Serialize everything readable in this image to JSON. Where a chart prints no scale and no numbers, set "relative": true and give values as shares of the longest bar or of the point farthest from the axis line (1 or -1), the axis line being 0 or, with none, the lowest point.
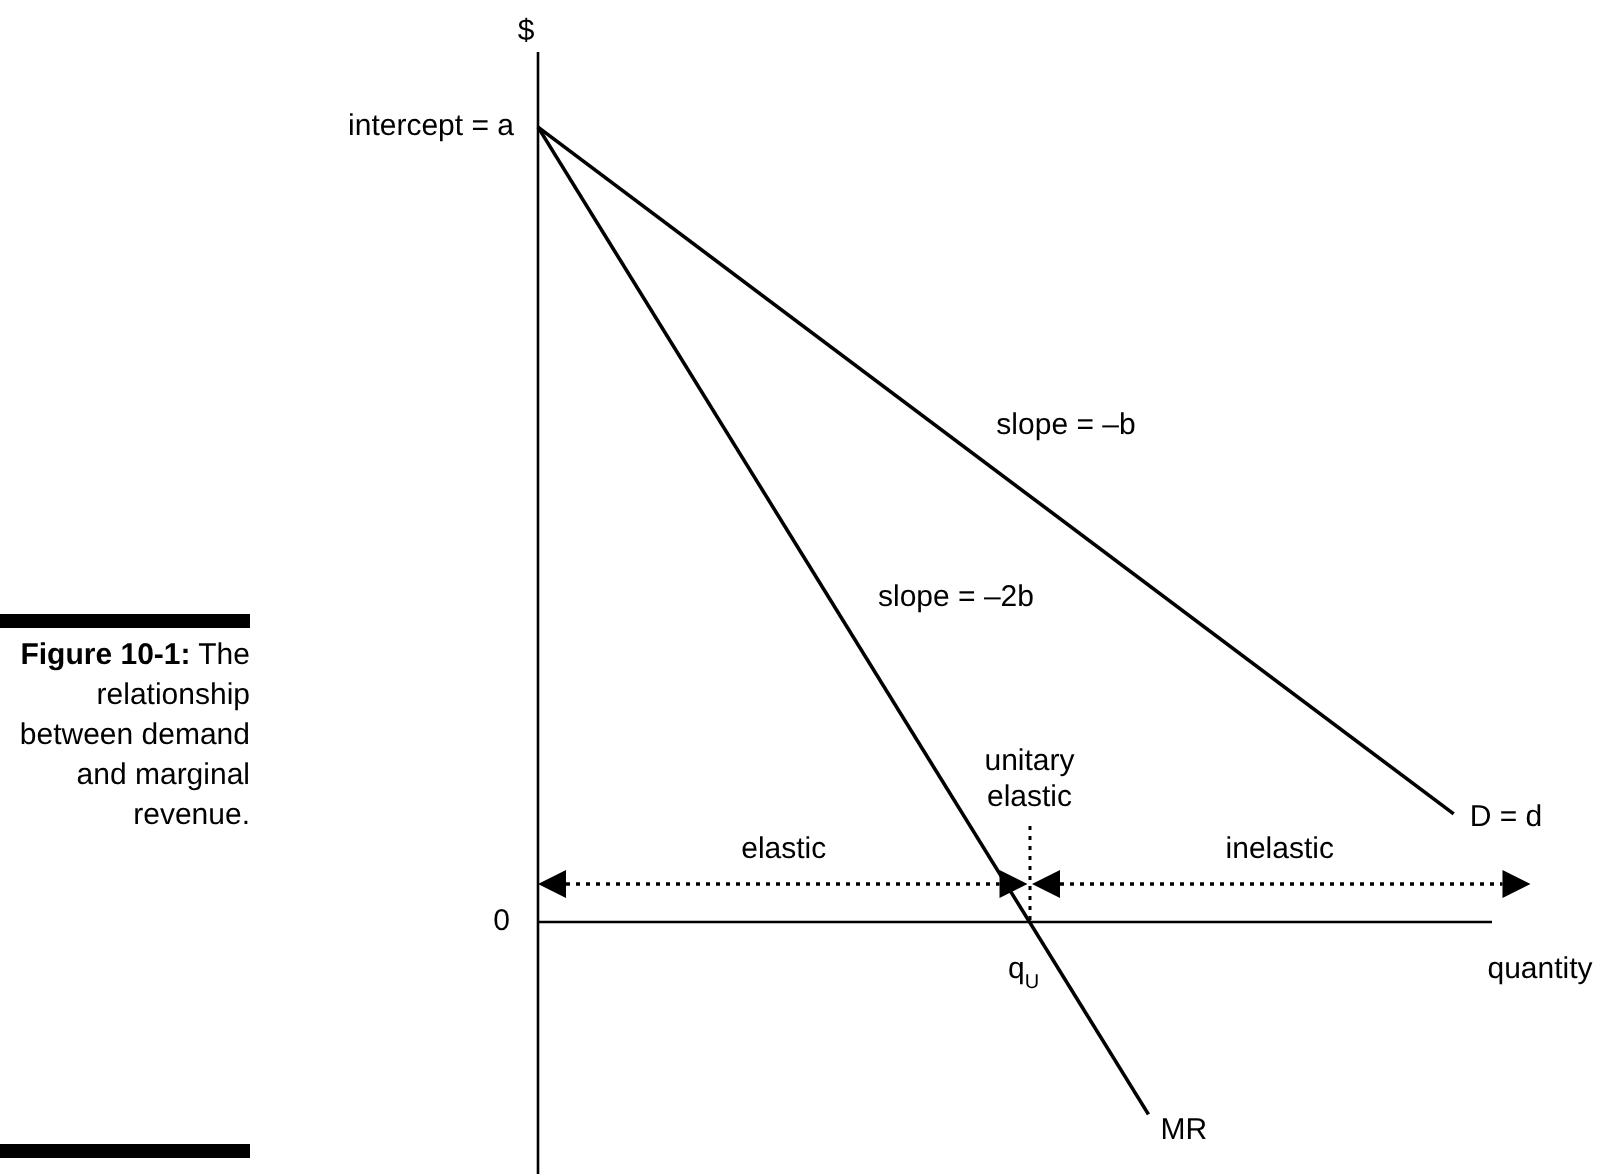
{
  "chart_data": {
    "type": "line",
    "relative": true,
    "xlabel": "quantity",
    "ylabel": "$",
    "legend": false,
    "marker": "none",
    "categories": [
      null,
      null,
      null,
      null,
      null,
      null,
      null,
      null,
      null,
      null,
      null,
      null,
      null,
      null,
      null,
      null,
      null,
      null,
      null,
      null,
      null,
      null,
      null,
      null,
      null,
      null,
      null,
      null,
      null,
      null,
      null,
      null,
      null,
      null,
      null,
      null,
      null,
      null,
      null,
      null,
      null,
      null,
      null,
      null,
      null,
      null,
      null,
      null,
      null,
      null,
      null,
      null,
      null
    ],
    "series": [
      {
        "values": [
          1,
          null,
          null,
          null,
          null,
          null,
          null,
          null,
          null,
          null,
          null,
          null,
          null,
          null,
          null,
          null,
          null,
          null,
          null,
          null,
          null,
          null,
          null,
          null,
          null,
          null,
          null,
          null,
          null,
          null,
          null,
          null,
          null,
          null,
          null,
          null,
          null,
          null,
          null,
          null,
          null,
          null,
          null,
          null,
          null,
          null,
          null,
          null,
          0.136,
          null,
          null,
          null,
          null
        ],
        "color": "#000000"
      },
      {
        "values": [
          1,
          null,
          null,
          null,
          null,
          null,
          null,
          null,
          null,
          null,
          null,
          null,
          null,
          null,
          null,
          null,
          null,
          null,
          null,
          null,
          null,
          null,
          null,
          null,
          null,
          null,
          null,
          null,
          null,
          null,
          null,
          null,
          -0.242,
          null,
          null,
          null,
          null,
          null,
          null,
          null,
          null,
          null,
          null,
          null,
          null,
          null,
          null,
          null,
          null,
          null,
          null,
          null,
          null
        ],
        "color": "#000000"
      }
    ],
    "annotations": [
      "intercept = a",
      "0",
      "slope = –b",
      "slope = –2b",
      "D = d",
      "MR",
      "q$_{U}$",
      "unitary elastic",
      "elastic",
      "inelastic",
      "Figure 10-1: The relationship between demand and marginal revenue."
    ]
  }
}
